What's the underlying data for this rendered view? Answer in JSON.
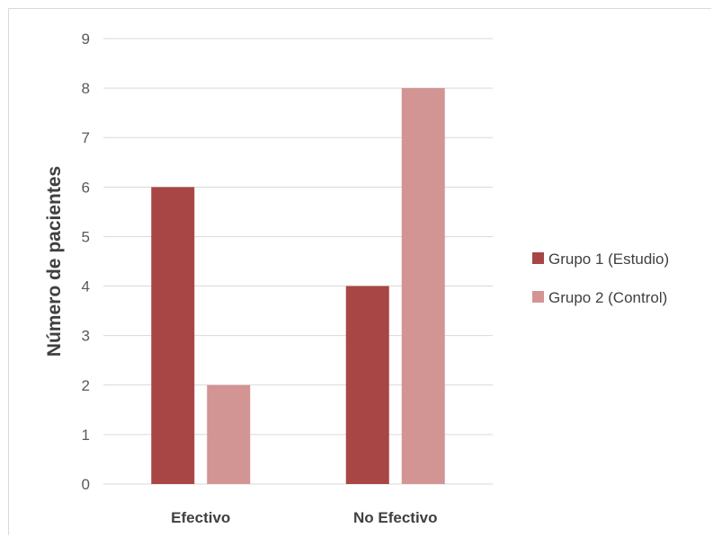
{
  "chart_data": {
    "type": "bar",
    "title": "",
    "xlabel": "",
    "ylabel": "Número de pacientes",
    "categories": [
      "Efectivo",
      "No Efectivo"
    ],
    "series": [
      {
        "name": "Grupo 1 (Estudio)",
        "color": "#a84646",
        "values": [
          6,
          4
        ]
      },
      {
        "name": "Grupo 2 (Control)",
        "color": "#d39494",
        "values": [
          2,
          8
        ]
      }
    ],
    "ylim": [
      0,
      9
    ],
    "yticks": [
      0,
      1,
      2,
      3,
      4,
      5,
      6,
      7,
      8,
      9
    ],
    "grid": true,
    "gridColor": "#d9d9d9",
    "legend": "right"
  }
}
